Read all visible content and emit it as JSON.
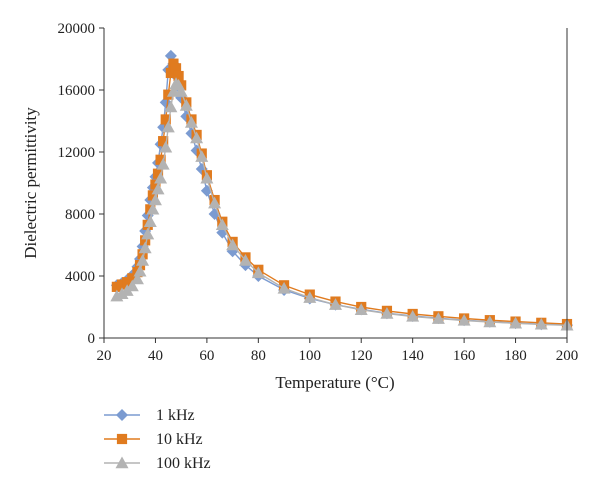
{
  "chart_data": {
    "type": "scatter",
    "xlabel": "Temperature (°C)",
    "ylabel": "Dielectric permittivity",
    "xlim": [
      20,
      200
    ],
    "ylim": [
      0,
      20000
    ],
    "x_ticks": [
      20,
      40,
      60,
      80,
      100,
      120,
      140,
      160,
      180,
      200
    ],
    "y_ticks": [
      0,
      4000,
      8000,
      12000,
      16000,
      20000
    ],
    "grid": false,
    "legend_position": "bottom-left",
    "series": [
      {
        "name": "1 kHz",
        "color": "#7b9bd1",
        "marker": "diamond",
        "x": [
          25,
          27,
          29,
          31,
          33,
          34,
          35,
          36,
          37,
          38,
          39,
          40,
          41,
          42,
          43,
          44,
          45,
          46,
          47,
          48,
          49,
          50,
          52,
          54,
          56,
          58,
          60,
          63,
          66,
          70,
          75,
          80,
          90,
          100,
          110,
          120,
          130,
          140,
          150,
          160,
          170,
          180,
          190,
          200
        ],
        "y": [
          3400,
          3550,
          3750,
          4050,
          4600,
          5100,
          5900,
          6900,
          7900,
          8900,
          9700,
          10400,
          11300,
          12500,
          13600,
          15200,
          17300,
          18200,
          17700,
          16900,
          16200,
          15500,
          14300,
          13200,
          12100,
          10900,
          9500,
          8000,
          6800,
          5600,
          4700,
          4000,
          3100,
          2550,
          2150,
          1850,
          1600,
          1420,
          1280,
          1150,
          1050,
          960,
          890,
          830
        ]
      },
      {
        "name": "10 kHz",
        "color": "#e07b1f",
        "marker": "square",
        "x": [
          25,
          27,
          29,
          31,
          33,
          34,
          35,
          36,
          37,
          38,
          39,
          40,
          41,
          42,
          43,
          44,
          45,
          46,
          47,
          48,
          49,
          50,
          52,
          54,
          56,
          58,
          60,
          63,
          66,
          70,
          75,
          80,
          90,
          100,
          110,
          120,
          130,
          140,
          150,
          160,
          170,
          180,
          190,
          200
        ],
        "y": [
          3300,
          3450,
          3600,
          3850,
          4250,
          4700,
          5400,
          6300,
          7300,
          8300,
          9200,
          9900,
          10600,
          11500,
          12700,
          14100,
          15700,
          17100,
          17700,
          17400,
          16900,
          16300,
          15200,
          14100,
          13100,
          11900,
          10500,
          8900,
          7500,
          6200,
          5200,
          4400,
          3400,
          2800,
          2350,
          2000,
          1750,
          1550,
          1400,
          1260,
          1150,
          1060,
          980,
          900
        ]
      },
      {
        "name": "100 kHz",
        "color": "#b3b3b3",
        "marker": "triangle",
        "x": [
          25,
          27,
          29,
          31,
          33,
          34,
          35,
          36,
          37,
          38,
          39,
          40,
          41,
          42,
          43,
          44,
          45,
          46,
          47,
          48,
          49,
          50,
          52,
          54,
          56,
          58,
          60,
          63,
          66,
          70,
          75,
          80,
          90,
          100,
          110,
          120,
          130,
          140,
          150,
          160,
          170,
          180,
          190,
          200
        ],
        "y": [
          2700,
          2850,
          3050,
          3350,
          3800,
          4300,
          5000,
          5800,
          6700,
          7500,
          8300,
          8900,
          9600,
          10300,
          11200,
          12300,
          13600,
          14900,
          15900,
          16400,
          16300,
          15900,
          15000,
          13900,
          12900,
          11700,
          10300,
          8700,
          7300,
          6000,
          5000,
          4200,
          3200,
          2600,
          2150,
          1820,
          1580,
          1390,
          1250,
          1130,
          1030,
          950,
          880,
          820
        ]
      }
    ]
  }
}
